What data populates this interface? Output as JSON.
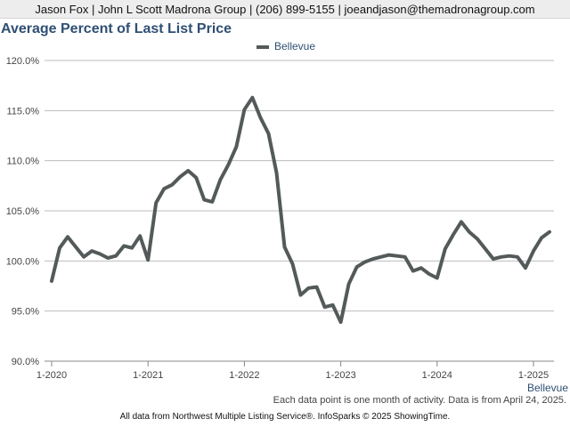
{
  "header": {
    "text": "Jason Fox | John L Scott Madrona Group | (206) 899-5155 | joeandjason@themadronagroup.com"
  },
  "title": "Average Percent of Last List Price",
  "footnote": "Each data point is one month of activity. Data is from April 24, 2025.",
  "footer": "All data from Northwest Multiple Listing Service®. InfoSparks © 2025 ShowingTime.",
  "series_end_label": "Bellevue",
  "colors": {
    "line": "#545a5a",
    "title": "#2f4f73",
    "grid": "#bcbcbc"
  },
  "chart_data": {
    "type": "line",
    "title": "Average Percent of Last List Price",
    "xlabel": "",
    "ylabel": "",
    "ylim": [
      90,
      120
    ],
    "yticks": [
      "90.0%",
      "95.0%",
      "100.0%",
      "105.0%",
      "110.0%",
      "115.0%",
      "120.0%"
    ],
    "xticks": [
      "1-2020",
      "1-2021",
      "1-2022",
      "1-2023",
      "1-2024",
      "1-2025"
    ],
    "legend": "top-center",
    "grid": true,
    "x": [
      "1-2020",
      "2-2020",
      "3-2020",
      "4-2020",
      "5-2020",
      "6-2020",
      "7-2020",
      "8-2020",
      "9-2020",
      "10-2020",
      "11-2020",
      "12-2020",
      "1-2021",
      "2-2021",
      "3-2021",
      "4-2021",
      "5-2021",
      "6-2021",
      "7-2021",
      "8-2021",
      "9-2021",
      "10-2021",
      "11-2021",
      "12-2021",
      "1-2022",
      "2-2022",
      "3-2022",
      "4-2022",
      "5-2022",
      "6-2022",
      "7-2022",
      "8-2022",
      "9-2022",
      "10-2022",
      "11-2022",
      "12-2022",
      "1-2023",
      "2-2023",
      "3-2023",
      "4-2023",
      "5-2023",
      "6-2023",
      "7-2023",
      "8-2023",
      "9-2023",
      "10-2023",
      "11-2023",
      "12-2023",
      "1-2024",
      "2-2024",
      "3-2024",
      "4-2024",
      "5-2024",
      "6-2024",
      "7-2024",
      "8-2024",
      "9-2024",
      "10-2024",
      "11-2024",
      "12-2024",
      "1-2025",
      "2-2025",
      "3-2025"
    ],
    "series": [
      {
        "name": "Bellevue",
        "values": [
          98.0,
          101.3,
          102.4,
          101.4,
          100.4,
          101.0,
          100.7,
          100.3,
          100.5,
          101.5,
          101.3,
          102.5,
          100.1,
          105.8,
          107.2,
          107.6,
          108.4,
          109.0,
          108.3,
          106.1,
          105.9,
          108.1,
          109.6,
          111.4,
          115.1,
          116.3,
          114.3,
          112.7,
          108.8,
          101.4,
          99.7,
          96.6,
          97.3,
          97.4,
          95.4,
          95.6,
          93.9,
          97.7,
          99.4,
          99.9,
          100.2,
          100.4,
          100.6,
          100.5,
          100.4,
          99.0,
          99.3,
          98.7,
          98.3,
          101.2,
          102.6,
          103.9,
          102.9,
          102.2,
          101.2,
          100.2,
          100.4,
          100.5,
          100.4,
          99.3,
          101.0,
          102.3,
          102.9
        ]
      }
    ]
  }
}
